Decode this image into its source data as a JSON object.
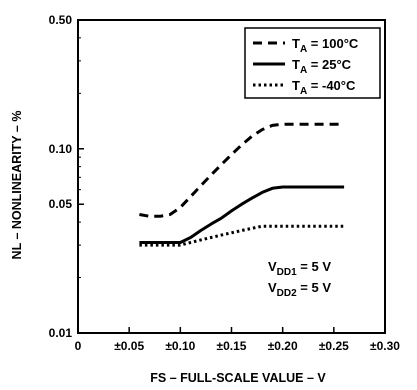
{
  "chart_data": {
    "type": "line",
    "title": "",
    "xlabel": "FS – FULL-SCALE VALUE – V",
    "ylabel": "NL – NONLINEARITY – %",
    "xlim": [
      0,
      0.3
    ],
    "ylim": [
      0.01,
      0.5
    ],
    "yscale": "log",
    "grid": false,
    "legend_position": "top-right",
    "x_ticks": [
      0,
      0.05,
      0.1,
      0.15,
      0.2,
      0.25,
      0.3
    ],
    "x_tick_labels": [
      "0",
      "±0.05",
      "±0.10",
      "±0.15",
      "±0.20",
      "±0.25",
      "±0.30"
    ],
    "y_ticks": [
      0.01,
      0.05,
      0.1,
      0.5
    ],
    "y_tick_labels": [
      "0.01",
      "0.05",
      "0.10",
      "0.50"
    ],
    "series": [
      {
        "name": "TA = 100°C",
        "legend_main": "T",
        "legend_sub": "A",
        "legend_rest": " = 100°C",
        "style": "dashed",
        "x": [
          0.06,
          0.07,
          0.08,
          0.09,
          0.1,
          0.11,
          0.12,
          0.13,
          0.14,
          0.15,
          0.16,
          0.17,
          0.18,
          0.19,
          0.2,
          0.22,
          0.24,
          0.26
        ],
        "y": [
          0.044,
          0.043,
          0.043,
          0.044,
          0.048,
          0.055,
          0.063,
          0.072,
          0.082,
          0.093,
          0.105,
          0.117,
          0.127,
          0.134,
          0.136,
          0.136,
          0.136,
          0.136
        ]
      },
      {
        "name": "TA = 25°C",
        "legend_main": "T",
        "legend_sub": "A",
        "legend_rest": " = 25°C",
        "style": "solid",
        "x": [
          0.06,
          0.07,
          0.08,
          0.09,
          0.1,
          0.11,
          0.12,
          0.13,
          0.14,
          0.15,
          0.16,
          0.17,
          0.18,
          0.19,
          0.2,
          0.22,
          0.24,
          0.26
        ],
        "y": [
          0.031,
          0.031,
          0.031,
          0.031,
          0.031,
          0.033,
          0.036,
          0.039,
          0.042,
          0.046,
          0.05,
          0.054,
          0.058,
          0.061,
          0.062,
          0.062,
          0.062,
          0.062
        ]
      },
      {
        "name": "TA = -40°C",
        "legend_main": "T",
        "legend_sub": "A",
        "legend_rest": " = -40°C",
        "style": "dotted",
        "x": [
          0.06,
          0.07,
          0.08,
          0.09,
          0.1,
          0.11,
          0.12,
          0.13,
          0.14,
          0.15,
          0.16,
          0.17,
          0.18,
          0.19,
          0.2,
          0.22,
          0.24,
          0.26
        ],
        "y": [
          0.03,
          0.03,
          0.03,
          0.03,
          0.03,
          0.031,
          0.032,
          0.033,
          0.034,
          0.035,
          0.036,
          0.037,
          0.038,
          0.038,
          0.038,
          0.038,
          0.038,
          0.038
        ]
      }
    ],
    "annotations": [
      {
        "main": "V",
        "sub": "DD1",
        "rest": " = 5 V"
      },
      {
        "main": "V",
        "sub": "DD2",
        "rest": " = 5 V"
      }
    ]
  }
}
